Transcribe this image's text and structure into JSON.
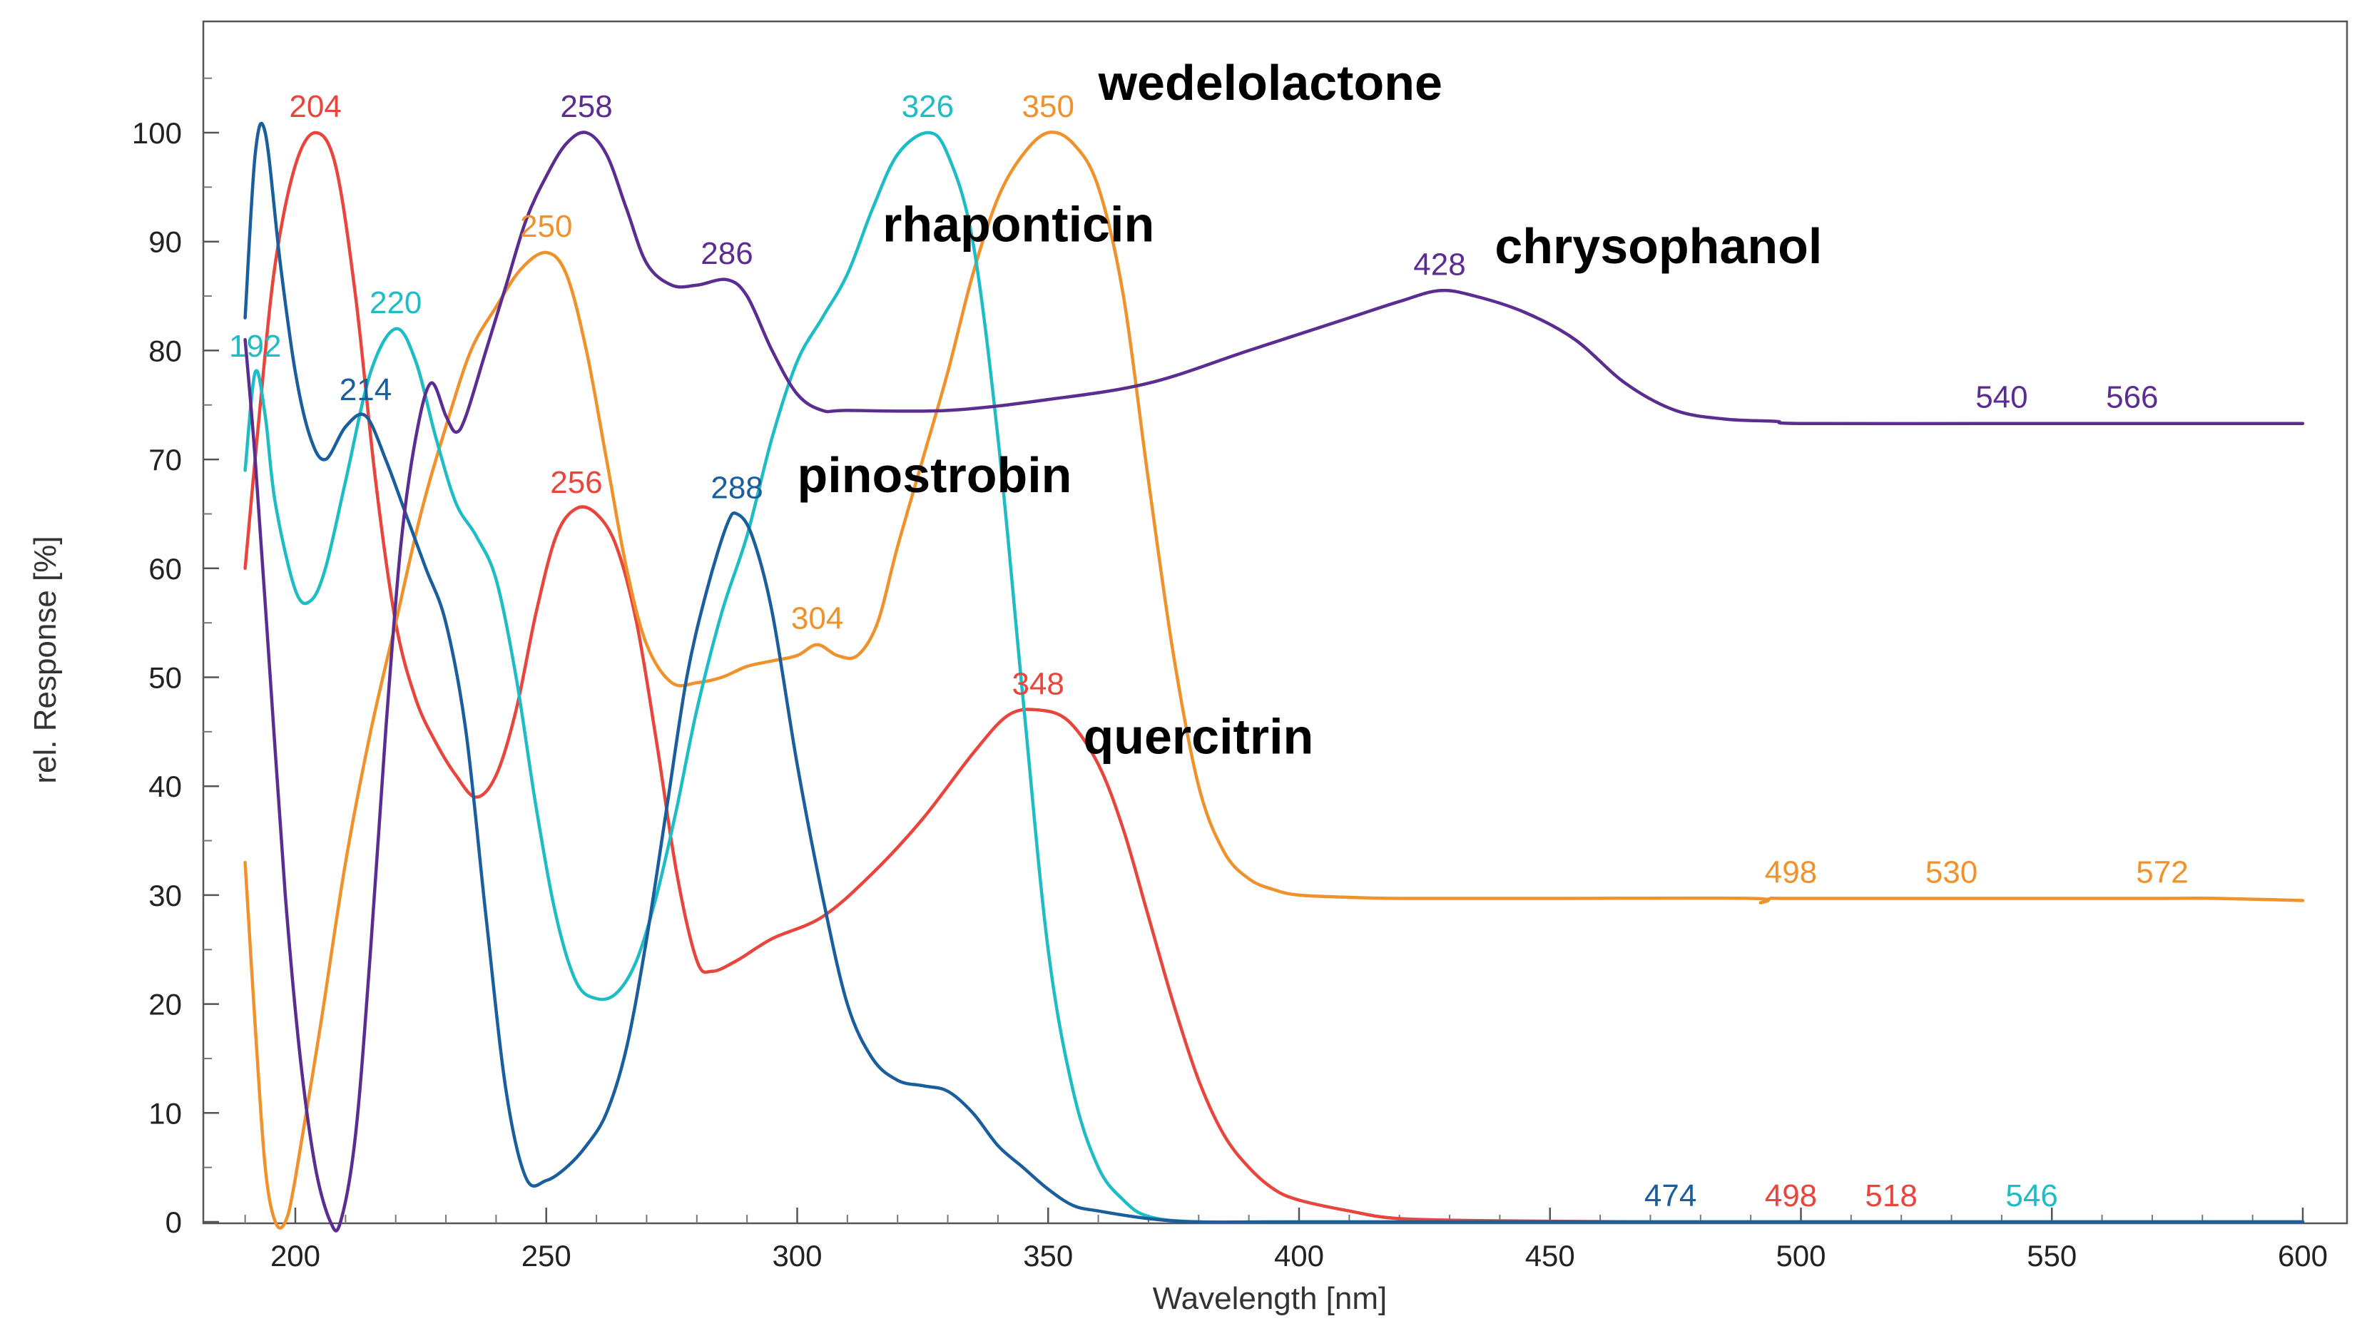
{
  "chart_data": {
    "type": "line",
    "title": "",
    "xlabel": "Wavelength [nm]",
    "ylabel": "rel. Response [%]",
    "xlim": [
      180,
      604
    ],
    "ylim": [
      0,
      110
    ],
    "xticks": [
      200,
      250,
      300,
      350,
      400,
      450,
      500,
      550,
      600
    ],
    "yticks": [
      0,
      10,
      20,
      30,
      40,
      50,
      60,
      70,
      80,
      90,
      100
    ],
    "grid": false,
    "series": [
      {
        "name": "quercitrin",
        "color": "#e8453c",
        "points": [
          [
            190,
            60
          ],
          [
            193,
            75
          ],
          [
            196,
            88
          ],
          [
            200,
            97
          ],
          [
            204,
            100
          ],
          [
            208,
            97
          ],
          [
            212,
            85
          ],
          [
            216,
            68
          ],
          [
            220,
            55
          ],
          [
            224,
            48
          ],
          [
            228,
            44
          ],
          [
            232,
            41
          ],
          [
            236,
            39
          ],
          [
            240,
            41
          ],
          [
            244,
            47
          ],
          [
            248,
            56
          ],
          [
            252,
            63
          ],
          [
            256,
            65.5
          ],
          [
            260,
            65
          ],
          [
            264,
            62
          ],
          [
            268,
            55
          ],
          [
            272,
            44
          ],
          [
            276,
            32
          ],
          [
            280,
            24
          ],
          [
            283,
            23
          ],
          [
            288,
            24
          ],
          [
            295,
            26
          ],
          [
            305,
            28
          ],
          [
            315,
            32
          ],
          [
            325,
            37
          ],
          [
            335,
            43
          ],
          [
            342,
            46.5
          ],
          [
            348,
            47
          ],
          [
            354,
            46
          ],
          [
            360,
            42
          ],
          [
            365,
            36
          ],
          [
            370,
            28
          ],
          [
            375,
            20
          ],
          [
            380,
            13
          ],
          [
            385,
            8
          ],
          [
            390,
            5
          ],
          [
            395,
            3
          ],
          [
            400,
            2
          ],
          [
            410,
            1
          ],
          [
            420,
            0.3
          ],
          [
            440,
            0.1
          ],
          [
            470,
            0
          ],
          [
            498,
            0
          ],
          [
            518,
            0
          ],
          [
            546,
            0
          ],
          [
            570,
            0
          ],
          [
            600,
            0
          ]
        ],
        "peaks": [
          {
            "x": 204,
            "label": "204"
          },
          {
            "x": 256,
            "label": "256"
          },
          {
            "x": 348,
            "label": "348"
          },
          {
            "x": 498,
            "label": "498"
          },
          {
            "x": 518,
            "label": "518"
          }
        ]
      },
      {
        "name": "wedelolactone",
        "color": "#f0922b",
        "points": [
          [
            190,
            33
          ],
          [
            192,
            18
          ],
          [
            194,
            5
          ],
          [
            196,
            0
          ],
          [
            198,
            0
          ],
          [
            200,
            4
          ],
          [
            205,
            18
          ],
          [
            210,
            33
          ],
          [
            215,
            45
          ],
          [
            220,
            55
          ],
          [
            225,
            65
          ],
          [
            230,
            73
          ],
          [
            235,
            80
          ],
          [
            240,
            84
          ],
          [
            245,
            87.5
          ],
          [
            250,
            89
          ],
          [
            254,
            87
          ],
          [
            258,
            80
          ],
          [
            262,
            70
          ],
          [
            266,
            60
          ],
          [
            270,
            53
          ],
          [
            275,
            49.5
          ],
          [
            280,
            49.5
          ],
          [
            285,
            50
          ],
          [
            290,
            51
          ],
          [
            295,
            51.5
          ],
          [
            300,
            52
          ],
          [
            304,
            53
          ],
          [
            308,
            52
          ],
          [
            312,
            52
          ],
          [
            316,
            55
          ],
          [
            320,
            62
          ],
          [
            325,
            70
          ],
          [
            330,
            78
          ],
          [
            335,
            87
          ],
          [
            340,
            94
          ],
          [
            345,
            98
          ],
          [
            350,
            100
          ],
          [
            355,
            99
          ],
          [
            360,
            95
          ],
          [
            365,
            85
          ],
          [
            370,
            68
          ],
          [
            375,
            52
          ],
          [
            380,
            40
          ],
          [
            385,
            34
          ],
          [
            390,
            31.5
          ],
          [
            395,
            30.5
          ],
          [
            400,
            30
          ],
          [
            410,
            29.8
          ],
          [
            420,
            29.7
          ],
          [
            450,
            29.7
          ],
          [
            490,
            29.7
          ],
          [
            492,
            29.3
          ],
          [
            494,
            29.7
          ],
          [
            498,
            29.7
          ],
          [
            530,
            29.7
          ],
          [
            560,
            29.7
          ],
          [
            572,
            29.7
          ],
          [
            583,
            29.7
          ],
          [
            600,
            29.5
          ]
        ],
        "peaks": [
          {
            "x": 250,
            "label": "250"
          },
          {
            "x": 304,
            "label": "304"
          },
          {
            "x": 350,
            "label": "350"
          },
          {
            "x": 498,
            "label": "498"
          },
          {
            "x": 530,
            "label": "530"
          },
          {
            "x": 572,
            "label": "572"
          }
        ]
      },
      {
        "name": "rhaponticin",
        "color": "#1ebcc4",
        "points": [
          [
            190,
            69
          ],
          [
            192,
            78
          ],
          [
            194,
            74
          ],
          [
            196,
            66
          ],
          [
            200,
            58
          ],
          [
            203,
            57
          ],
          [
            206,
            60
          ],
          [
            210,
            68
          ],
          [
            215,
            78
          ],
          [
            220,
            82
          ],
          [
            224,
            79
          ],
          [
            228,
            72
          ],
          [
            232,
            66
          ],
          [
            236,
            63
          ],
          [
            240,
            59
          ],
          [
            244,
            50
          ],
          [
            248,
            38
          ],
          [
            252,
            28
          ],
          [
            256,
            22
          ],
          [
            260,
            20.5
          ],
          [
            264,
            21
          ],
          [
            268,
            24
          ],
          [
            272,
            30
          ],
          [
            276,
            38
          ],
          [
            280,
            47
          ],
          [
            285,
            56
          ],
          [
            290,
            63
          ],
          [
            295,
            72
          ],
          [
            300,
            79
          ],
          [
            305,
            83
          ],
          [
            310,
            87
          ],
          [
            315,
            93
          ],
          [
            320,
            98
          ],
          [
            326,
            100
          ],
          [
            330,
            98
          ],
          [
            335,
            90
          ],
          [
            340,
            72
          ],
          [
            345,
            48
          ],
          [
            350,
            25
          ],
          [
            355,
            12
          ],
          [
            360,
            5
          ],
          [
            365,
            2
          ],
          [
            370,
            0.5
          ],
          [
            380,
            0
          ],
          [
            400,
            0
          ],
          [
            450,
            0
          ],
          [
            500,
            0
          ],
          [
            546,
            0
          ],
          [
            600,
            0
          ]
        ],
        "peaks": [
          {
            "x": 192,
            "label": "192"
          },
          {
            "x": 220,
            "label": "220"
          },
          {
            "x": 326,
            "label": "326"
          },
          {
            "x": 546,
            "label": "546"
          }
        ]
      },
      {
        "name": "pinostrobin",
        "color": "#1a5e9e",
        "points": [
          [
            190,
            83
          ],
          [
            192,
            98
          ],
          [
            194,
            100
          ],
          [
            197,
            88
          ],
          [
            200,
            78
          ],
          [
            203,
            72
          ],
          [
            206,
            70
          ],
          [
            210,
            73
          ],
          [
            214,
            74
          ],
          [
            218,
            70
          ],
          [
            222,
            65
          ],
          [
            226,
            60
          ],
          [
            230,
            55
          ],
          [
            234,
            45
          ],
          [
            238,
            28
          ],
          [
            242,
            12
          ],
          [
            246,
            4
          ],
          [
            250,
            3.8
          ],
          [
            254,
            5
          ],
          [
            258,
            7
          ],
          [
            262,
            10
          ],
          [
            266,
            16
          ],
          [
            270,
            26
          ],
          [
            274,
            38
          ],
          [
            278,
            50
          ],
          [
            282,
            58
          ],
          [
            286,
            64
          ],
          [
            288,
            65
          ],
          [
            291,
            63
          ],
          [
            295,
            56
          ],
          [
            300,
            42
          ],
          [
            305,
            30
          ],
          [
            310,
            20
          ],
          [
            315,
            15
          ],
          [
            320,
            13
          ],
          [
            325,
            12.5
          ],
          [
            330,
            12
          ],
          [
            335,
            10
          ],
          [
            340,
            7
          ],
          [
            345,
            5
          ],
          [
            350,
            3
          ],
          [
            355,
            1.5
          ],
          [
            360,
            1
          ],
          [
            370,
            0.3
          ],
          [
            380,
            0
          ],
          [
            400,
            0
          ],
          [
            474,
            0
          ],
          [
            500,
            0
          ],
          [
            600,
            0
          ]
        ],
        "peaks": [
          {
            "x": 214,
            "label": "214"
          },
          {
            "x": 288,
            "label": "288"
          },
          {
            "x": 474,
            "label": "474"
          }
        ]
      },
      {
        "name": "chrysophanol",
        "color": "#5b2d91",
        "points": [
          [
            190,
            81
          ],
          [
            192,
            70
          ],
          [
            195,
            50
          ],
          [
            198,
            30
          ],
          [
            201,
            15
          ],
          [
            204,
            5
          ],
          [
            207,
            0
          ],
          [
            209,
            0
          ],
          [
            212,
            8
          ],
          [
            215,
            25
          ],
          [
            218,
            45
          ],
          [
            221,
            62
          ],
          [
            224,
            72
          ],
          [
            227,
            77
          ],
          [
            230,
            74
          ],
          [
            232,
            72.5
          ],
          [
            234,
            74
          ],
          [
            238,
            80
          ],
          [
            242,
            86
          ],
          [
            246,
            92
          ],
          [
            250,
            96
          ],
          [
            254,
            99
          ],
          [
            258,
            100
          ],
          [
            262,
            98
          ],
          [
            266,
            93
          ],
          [
            270,
            88
          ],
          [
            275,
            86
          ],
          [
            280,
            86
          ],
          [
            286,
            86.5
          ],
          [
            290,
            85
          ],
          [
            295,
            80
          ],
          [
            300,
            76
          ],
          [
            305,
            74.5
          ],
          [
            310,
            74.5
          ],
          [
            330,
            74.5
          ],
          [
            350,
            75.5
          ],
          [
            370,
            77
          ],
          [
            390,
            80
          ],
          [
            410,
            83
          ],
          [
            420,
            84.5
          ],
          [
            428,
            85.5
          ],
          [
            435,
            85
          ],
          [
            445,
            83.5
          ],
          [
            455,
            81
          ],
          [
            465,
            77
          ],
          [
            475,
            74.5
          ],
          [
            485,
            73.7
          ],
          [
            495,
            73.5
          ],
          [
            500,
            73.3
          ],
          [
            540,
            73.3
          ],
          [
            566,
            73.3
          ],
          [
            600,
            73.3
          ]
        ],
        "peaks": [
          {
            "x": 258,
            "label": "258"
          },
          {
            "x": 286,
            "label": "286"
          },
          {
            "x": 428,
            "label": "428"
          },
          {
            "x": 540,
            "label": "540"
          },
          {
            "x": 566,
            "label": "566"
          }
        ]
      }
    ],
    "annotations": [
      {
        "text": "wedelolactone",
        "x": 360,
        "y": 103
      },
      {
        "text": "rhaponticin",
        "x": 317,
        "y": 90
      },
      {
        "text": "chrysophanol",
        "x": 439,
        "y": 88
      },
      {
        "text": "pinostrobin",
        "x": 300,
        "y": 67
      },
      {
        "text": "quercitrin",
        "x": 357,
        "y": 43
      }
    ]
  }
}
